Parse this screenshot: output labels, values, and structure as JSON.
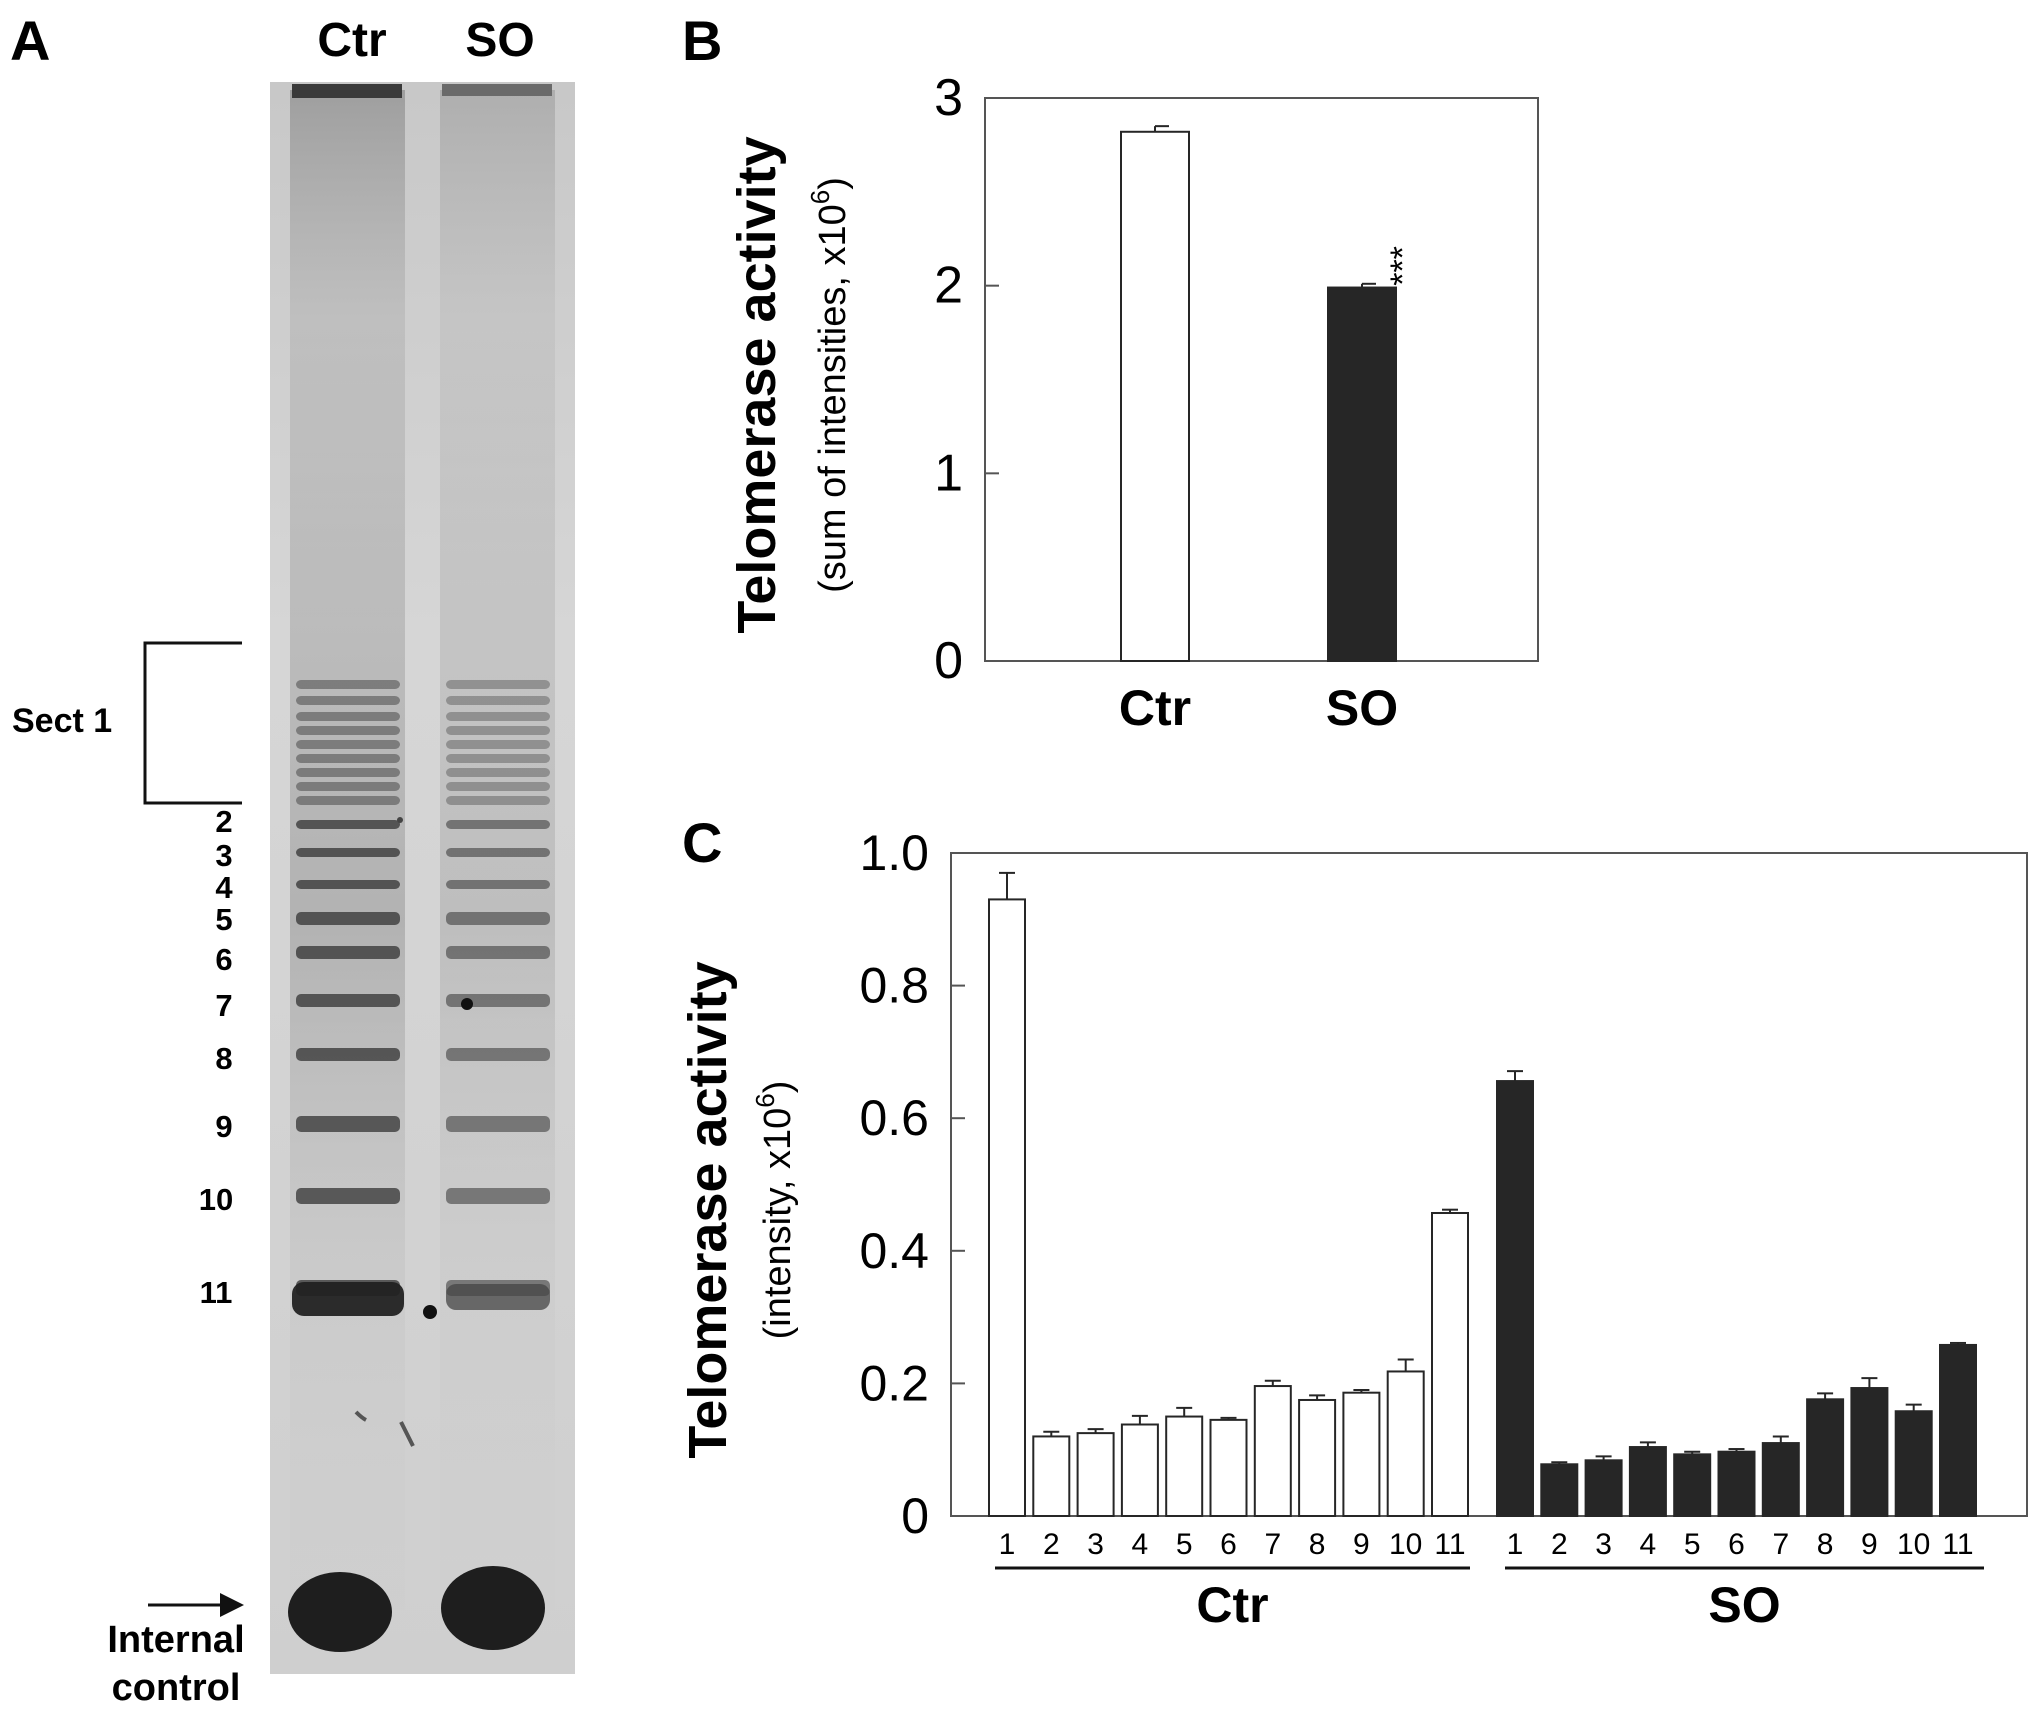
{
  "panel_a": {
    "letter": "A",
    "lanes": [
      "Ctr",
      "SO"
    ],
    "section_label": "Sect 1",
    "band_numbers": [
      "2",
      "3",
      "4",
      "5",
      "6",
      "7",
      "8",
      "9",
      "10",
      "11"
    ],
    "internal_control_label": [
      "Internal",
      "control"
    ]
  },
  "colors": {
    "ctr_bar": "#ffffff",
    "so_bar": "#262626",
    "bar_edge": "#262626",
    "axis": "#555555",
    "gel_background": "#d2d2d2",
    "gel_band": "#333333"
  },
  "chart_data": [
    {
      "panel": "B",
      "type": "bar",
      "ylabel": "Telomerase activity",
      "ylabel_sub": [
        "(sum of intensities, x10",
        "6",
        ")"
      ],
      "ylim": [
        0,
        3
      ],
      "yticks": [
        "0",
        "1",
        "2",
        "3"
      ],
      "categories": [
        "Ctr",
        "SO"
      ],
      "values": [
        2.82,
        1.99
      ],
      "errors": [
        0.03,
        0.02
      ],
      "fills": [
        "#ffffff",
        "#262626"
      ],
      "annotations": [
        {
          "category": "SO",
          "text": "***"
        }
      ],
      "grid": false,
      "legend": "none"
    },
    {
      "panel": "C",
      "type": "bar",
      "ylabel": "Telomerase activity",
      "ylabel_sub": [
        "(intensity, x10",
        "6",
        ")"
      ],
      "ylim": [
        0,
        1.0
      ],
      "yticks": [
        "0",
        "0.2",
        "0.4",
        "0.6",
        "0.8",
        "1.0"
      ],
      "x": [
        "1",
        "2",
        "3",
        "4",
        "5",
        "6",
        "7",
        "8",
        "9",
        "10",
        "11"
      ],
      "series": [
        {
          "name": "Ctr",
          "fill": "#ffffff",
          "values": [
            0.93,
            0.12,
            0.125,
            0.138,
            0.15,
            0.145,
            0.196,
            0.175,
            0.186,
            0.218,
            0.457
          ],
          "errors": [
            0.04,
            0.007,
            0.006,
            0.013,
            0.013,
            0.003,
            0.008,
            0.007,
            0.004,
            0.018,
            0.005
          ]
        },
        {
          "name": "SO",
          "fill": "#262626",
          "values": [
            0.656,
            0.078,
            0.084,
            0.104,
            0.093,
            0.097,
            0.11,
            0.176,
            0.193,
            0.158,
            0.258
          ],
          "errors": [
            0.015,
            0.003,
            0.006,
            0.007,
            0.004,
            0.004,
            0.01,
            0.009,
            0.015,
            0.01,
            0.003
          ]
        }
      ],
      "group_labels": [
        "Ctr",
        "SO"
      ],
      "grid": false,
      "legend": "none"
    }
  ]
}
